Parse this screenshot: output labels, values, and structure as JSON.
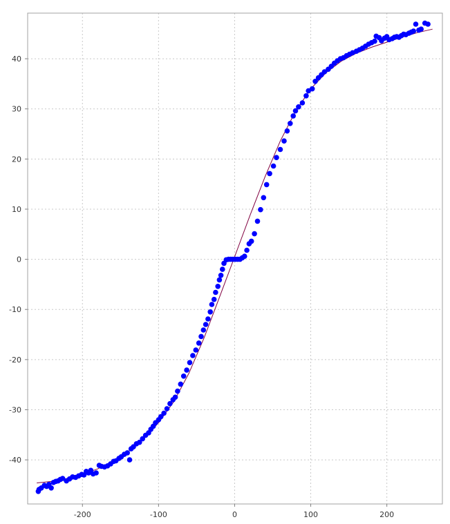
{
  "chart_data": {
    "type": "scatter",
    "title": "",
    "xlabel": "",
    "ylabel": "",
    "xlim": [
      -272,
      273
    ],
    "ylim": [
      -48.8,
      49.1
    ],
    "x_ticks": [
      -200,
      -100,
      0,
      100,
      200
    ],
    "y_ticks": [
      -40,
      -30,
      -20,
      -10,
      0,
      10,
      20,
      30,
      40
    ],
    "grid": true,
    "legend": "none",
    "colors": {
      "points": "#0000ff",
      "fit_line": "#800040",
      "grid": "#c8c8c8",
      "border": "#a0a0a0"
    },
    "series": [
      {
        "kind": "points",
        "points": [
          [
            -258,
            -46.3
          ],
          [
            -257,
            -45.9
          ],
          [
            -254,
            -45.6
          ],
          [
            -250,
            -45.1
          ],
          [
            -247,
            -45.3
          ],
          [
            -244,
            -44.9
          ],
          [
            -241,
            -45.6
          ],
          [
            -238,
            -44.5
          ],
          [
            -235,
            -44.3
          ],
          [
            -232,
            -44.2
          ],
          [
            -229,
            -43.9
          ],
          [
            -226,
            -43.7
          ],
          [
            -221,
            -44.2
          ],
          [
            -217,
            -43.8
          ],
          [
            -213,
            -43.4
          ],
          [
            -209,
            -43.5
          ],
          [
            -205,
            -43.2
          ],
          [
            -201,
            -42.9
          ],
          [
            -198,
            -43.0
          ],
          [
            -195,
            -42.3
          ],
          [
            -192,
            -42.6
          ],
          [
            -189,
            -42.1
          ],
          [
            -186,
            -42.8
          ],
          [
            -182,
            -42.6
          ],
          [
            -178,
            -41.1
          ],
          [
            -175,
            -41.3
          ],
          [
            -171,
            -41.4
          ],
          [
            -167,
            -41.2
          ],
          [
            -163,
            -40.8
          ],
          [
            -159,
            -40.3
          ],
          [
            -156,
            -40.2
          ],
          [
            -152,
            -39.7
          ],
          [
            -149,
            -39.4
          ],
          [
            -145,
            -38.9
          ],
          [
            -141,
            -38.6
          ],
          [
            -138,
            -40.0
          ],
          [
            -136,
            -37.8
          ],
          [
            -133,
            -37.4
          ],
          [
            -129,
            -36.8
          ],
          [
            -125,
            -36.5
          ],
          [
            -121,
            -35.8
          ],
          [
            -117,
            -35.1
          ],
          [
            -113,
            -34.6
          ],
          [
            -110,
            -33.9
          ],
          [
            -107,
            -33.3
          ],
          [
            -104,
            -32.6
          ],
          [
            -100,
            -32.0
          ],
          [
            -97,
            -31.4
          ],
          [
            -93,
            -30.7
          ],
          [
            -89,
            -29.8
          ],
          [
            -85,
            -28.8
          ],
          [
            -81,
            -28.0
          ],
          [
            -78,
            -27.5
          ],
          [
            -75,
            -26.3
          ],
          [
            -71,
            -24.9
          ],
          [
            -67,
            -23.3
          ],
          [
            -63,
            -22.1
          ],
          [
            -59,
            -20.6
          ],
          [
            -55,
            -19.2
          ],
          [
            -51,
            -18.1
          ],
          [
            -47,
            -16.7
          ],
          [
            -44,
            -15.4
          ],
          [
            -41,
            -14.1
          ],
          [
            -38,
            -13.0
          ],
          [
            -35,
            -11.9
          ],
          [
            -32,
            -10.5
          ],
          [
            -30,
            -9.0
          ],
          [
            -27,
            -8.0
          ],
          [
            -25,
            -6.6
          ],
          [
            -22,
            -5.4
          ],
          [
            -20,
            -4.1
          ],
          [
            -18,
            -3.2
          ],
          [
            -16,
            -2.0
          ],
          [
            -14,
            -0.8
          ],
          [
            -11,
            -0.1
          ],
          [
            -8,
            0.0
          ],
          [
            -5,
            0.0
          ],
          [
            -2,
            0.0
          ],
          [
            1,
            0.0
          ],
          [
            4,
            0.0
          ],
          [
            7,
            0.0
          ],
          [
            10,
            0.3
          ],
          [
            13,
            0.6
          ],
          [
            16,
            1.8
          ],
          [
            19,
            3.1
          ],
          [
            22,
            3.6
          ],
          [
            26,
            5.1
          ],
          [
            30,
            7.6
          ],
          [
            34,
            9.9
          ],
          [
            38,
            12.3
          ],
          [
            42,
            14.9
          ],
          [
            46,
            17.1
          ],
          [
            51,
            18.6
          ],
          [
            55,
            20.3
          ],
          [
            60,
            21.9
          ],
          [
            65,
            23.6
          ],
          [
            69,
            25.6
          ],
          [
            73,
            27.1
          ],
          [
            77,
            28.6
          ],
          [
            80,
            29.6
          ],
          [
            84,
            30.4
          ],
          [
            89,
            31.2
          ],
          [
            94,
            32.6
          ],
          [
            97,
            33.6
          ],
          [
            102,
            34.0
          ],
          [
            106,
            35.5
          ],
          [
            110,
            36.2
          ],
          [
            114,
            36.8
          ],
          [
            118,
            37.4
          ],
          [
            123,
            37.9
          ],
          [
            127,
            38.5
          ],
          [
            131,
            39.1
          ],
          [
            135,
            39.6
          ],
          [
            139,
            40.0
          ],
          [
            143,
            40.2
          ],
          [
            147,
            40.6
          ],
          [
            151,
            40.9
          ],
          [
            155,
            41.2
          ],
          [
            160,
            41.5
          ],
          [
            164,
            41.8
          ],
          [
            168,
            42.1
          ],
          [
            172,
            42.5
          ],
          [
            176,
            42.9
          ],
          [
            180,
            43.2
          ],
          [
            184,
            43.5
          ],
          [
            186,
            44.5
          ],
          [
            190,
            44.2
          ],
          [
            193,
            43.6
          ],
          [
            197,
            44.1
          ],
          [
            200,
            44.4
          ],
          [
            203,
            43.8
          ],
          [
            207,
            44.0
          ],
          [
            210,
            44.3
          ],
          [
            213,
            44.4
          ],
          [
            216,
            44.3
          ],
          [
            219,
            44.6
          ],
          [
            222,
            44.9
          ],
          [
            225,
            44.8
          ],
          [
            229,
            45.1
          ],
          [
            232,
            45.3
          ],
          [
            235,
            45.5
          ],
          [
            238,
            46.9
          ],
          [
            242,
            45.7
          ],
          [
            245,
            45.9
          ],
          [
            250,
            47.1
          ],
          [
            254,
            46.9
          ]
        ]
      },
      {
        "kind": "line",
        "points": [
          [
            -260,
            -44.6
          ],
          [
            -240,
            -44.3
          ],
          [
            -220,
            -43.7
          ],
          [
            -200,
            -42.9
          ],
          [
            -180,
            -41.8
          ],
          [
            -160,
            -40.3
          ],
          [
            -140,
            -38.4
          ],
          [
            -120,
            -35.9
          ],
          [
            -100,
            -32.6
          ],
          [
            -80,
            -28.4
          ],
          [
            -60,
            -22.7
          ],
          [
            -40,
            -15.6
          ],
          [
            -20,
            -7.6
          ],
          [
            0,
            0.5
          ],
          [
            20,
            8.7
          ],
          [
            40,
            16.5
          ],
          [
            60,
            23.6
          ],
          [
            80,
            29.5
          ],
          [
            100,
            34.0
          ],
          [
            120,
            37.2
          ],
          [
            140,
            39.5
          ],
          [
            160,
            41.1
          ],
          [
            180,
            42.3
          ],
          [
            200,
            43.3
          ],
          [
            220,
            44.3
          ],
          [
            240,
            45.2
          ],
          [
            260,
            45.9
          ]
        ]
      }
    ]
  }
}
